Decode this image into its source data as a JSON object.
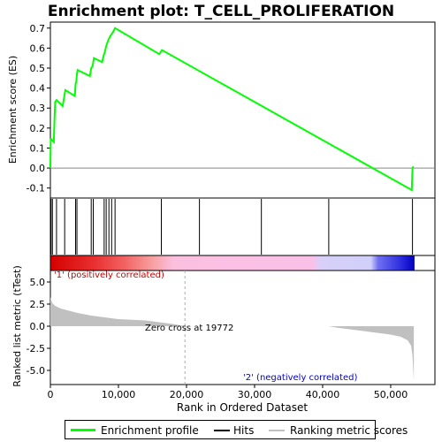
{
  "chart_data": {
    "type": "line",
    "title": "Enrichment plot: T_CELL_PROLIFERATION",
    "panels": {
      "enrichment": {
        "ylabel": "Enrichment score (ES)",
        "ylim": [
          -0.15,
          0.73
        ],
        "yticks": [
          -0.1,
          0.0,
          0.1,
          0.2,
          0.3,
          0.4,
          0.5,
          0.6,
          0.7
        ],
        "ytick_labels": [
          "-0.1",
          "0.0",
          "0.1",
          "0.2",
          "0.3",
          "0.4",
          "0.5",
          "0.6",
          "0.7"
        ],
        "series": [
          {
            "name": "Enrichment profile",
            "color": "#00ff00",
            "x": [
              0,
              50,
              100,
              500,
              600,
              700,
              900,
              1800,
              2000,
              2200,
              3600,
              3700,
              3800,
              3900,
              4000,
              5800,
              6000,
              6200,
              6400,
              7600,
              7800,
              8000,
              8200,
              8500,
              8800,
              9000,
              9200,
              9500,
              16000,
              16200,
              16400,
              53100,
              53200,
              53300,
              53400
            ],
            "y": [
              0.0,
              0.14,
              0.145,
              0.13,
              0.24,
              0.33,
              0.34,
              0.31,
              0.35,
              0.39,
              0.36,
              0.42,
              0.43,
              0.47,
              0.49,
              0.46,
              0.5,
              0.51,
              0.55,
              0.53,
              0.56,
              0.58,
              0.61,
              0.64,
              0.66,
              0.67,
              0.68,
              0.7,
              0.57,
              0.58,
              0.59,
              -0.11,
              0.0,
              0.005,
              0.005
            ]
          }
        ]
      },
      "hits": {
        "positions": [
          100,
          300,
          900,
          2100,
          3700,
          3900,
          6000,
          6300,
          7900,
          8200,
          8600,
          9000,
          9500,
          16300,
          21900,
          31000,
          40900,
          53200
        ]
      },
      "ranking_metric": {
        "xlabel": "Rank in Ordered Dataset",
        "ylabel": "Ranked list metric (tTest)",
        "ylim": [
          -6.6,
          6.3
        ],
        "yticks": [
          -5.0,
          -2.5,
          0.0,
          2.5,
          5.0
        ],
        "ytick_labels": [
          "-5.0",
          "-2.5",
          "0.0",
          "2.5",
          "5.0"
        ],
        "xlim": [
          0,
          56500
        ],
        "xticks": [
          0,
          10000,
          20000,
          30000,
          40000,
          50000
        ],
        "xtick_labels": [
          "0",
          "10,000",
          "20,000",
          "30,000",
          "40,000",
          "50,000"
        ],
        "series": [
          {
            "name": "Ranking metric scores",
            "color": "#c0c0c0",
            "x": [
              0,
              100,
              300,
              700,
              1500,
              2500,
              4000,
              6000,
              8000,
              10000,
              14000,
              16000,
              18000,
              19772,
              21000,
              40900,
              42000,
              45000,
              48000,
              50000,
              51500,
              52500,
              53000,
              53200,
              53400
            ],
            "y": [
              3.3,
              3.0,
              2.6,
              2.3,
              2.0,
              1.8,
              1.5,
              1.2,
              1.0,
              0.8,
              0.65,
              0.45,
              0.25,
              0.0,
              0.0,
              0.0,
              -0.15,
              -0.45,
              -0.75,
              -0.95,
              -1.2,
              -1.6,
              -2.2,
              -3.3,
              -6.2
            ]
          }
        ],
        "annotations": [
          {
            "text": "'1' (positively correlated)",
            "color": "#cc0000"
          },
          {
            "text": "Zero cross at 19772",
            "color": "#000000"
          },
          {
            "text": "'2' (negatively correlated)",
            "color": "#0000cc"
          }
        ],
        "zero_cross": 19772
      }
    },
    "legend": [
      "Enrichment profile",
      "Hits",
      "Ranking metric scores"
    ]
  },
  "colors": {
    "profile": "#00ff00",
    "hits": "#000000",
    "metric": "#c0c0c0",
    "pos": "#cc0000",
    "neg": "#0000cc"
  }
}
